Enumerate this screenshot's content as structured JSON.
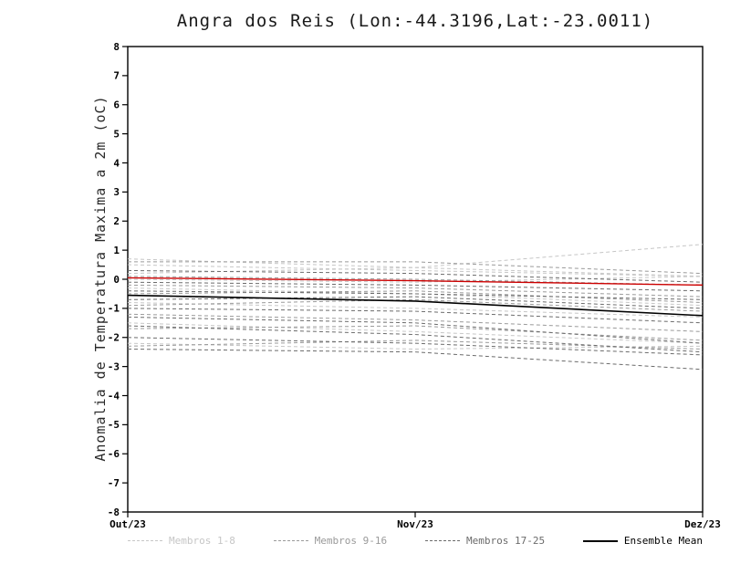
{
  "chart_data": {
    "type": "line",
    "title": "Angra dos Reis (Lon:-44.3196,Lat:-23.0011)",
    "ylabel": "Anomalia de Temperatura Maxima a 2m (oC)",
    "x": [
      "Out/23",
      "Nov/23",
      "Dez/23"
    ],
    "ylim": [
      -8,
      8
    ],
    "ytick_step": 1,
    "grid": false,
    "legend_position": "bottom",
    "groups": [
      {
        "name": "Membros 1-8",
        "color": "#c6c6c6",
        "style": "dashed",
        "members": [
          [
            0.7,
            0.4,
            1.2
          ],
          [
            0.5,
            0.3,
            0.1
          ],
          [
            0.2,
            0.4,
            0.1
          ],
          [
            0.0,
            -0.1,
            0.1
          ],
          [
            -0.3,
            -0.5,
            -0.9
          ],
          [
            -0.8,
            -1.0,
            -1.3
          ],
          [
            -1.5,
            -1.8,
            -2.2
          ],
          [
            -2.2,
            -2.4,
            -2.3
          ]
        ]
      },
      {
        "name": "Membros 9-16",
        "color": "#9a9a9a",
        "style": "dashed",
        "members": [
          [
            0.6,
            0.6,
            0.2
          ],
          [
            0.1,
            0.0,
            -0.2
          ],
          [
            -0.2,
            -0.3,
            -0.6
          ],
          [
            -0.5,
            -0.4,
            -0.8
          ],
          [
            -0.9,
            -0.7,
            -1.1
          ],
          [
            -1.2,
            -1.4,
            -1.8
          ],
          [
            -1.7,
            -1.6,
            -2.1
          ],
          [
            -2.3,
            -2.1,
            -2.4
          ]
        ]
      },
      {
        "name": "Membros 17-25",
        "color": "#6b6b6b",
        "style": "dashed",
        "members": [
          [
            0.3,
            0.2,
            -0.1
          ],
          [
            -0.1,
            -0.2,
            -0.4
          ],
          [
            -0.4,
            -0.5,
            -0.7
          ],
          [
            -0.7,
            -0.6,
            -1.0
          ],
          [
            -1.0,
            -1.1,
            -1.5
          ],
          [
            -1.3,
            -1.5,
            -2.2
          ],
          [
            -1.6,
            -1.9,
            -2.5
          ],
          [
            -2.0,
            -2.2,
            -2.6
          ],
          [
            -2.4,
            -2.5,
            -3.1
          ]
        ]
      }
    ],
    "extra_lines": [
      {
        "name": "reference-line",
        "color": "#cc0000",
        "style": "solid",
        "values": [
          0.05,
          -0.05,
          -0.2
        ]
      }
    ],
    "mean": {
      "name": "Ensemble Mean",
      "color": "#000000",
      "style": "solid",
      "values": [
        -0.55,
        -0.75,
        -1.25
      ]
    },
    "legend": [
      {
        "label": "Membros 1-8",
        "color": "#c6c6c6",
        "style": "dashed"
      },
      {
        "label": "Membros 9-16",
        "color": "#9a9a9a",
        "style": "dashed"
      },
      {
        "label": "Membros 17-25",
        "color": "#6b6b6b",
        "style": "dashed"
      },
      {
        "label": "Ensemble Mean",
        "color": "#000000",
        "style": "solid"
      }
    ]
  }
}
